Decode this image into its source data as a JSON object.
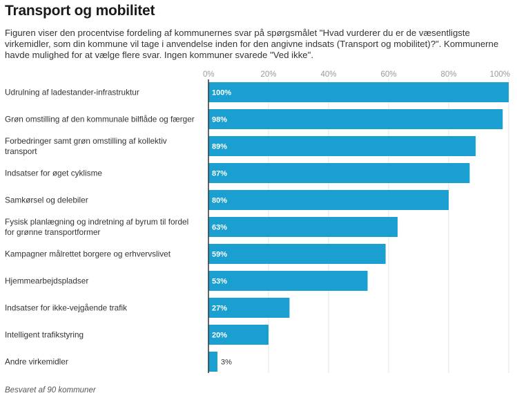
{
  "header": {
    "title": "Transport og mobilitet",
    "subtitle": "Figuren viser den procentvise fordeling af kommunernes svar på spørgsmålet \"Hvad vurderer du er de væsentligste virkemidler, som din kommune vil tage i anvendelse inden for den angivne indsats (Transport og mobilitet)?\". Kommunerne havde mulighed for at vælge flere svar. Ingen kommuner svarede \"Ved ikke\"."
  },
  "footer": {
    "note": "Besvaret af 90 kommuner"
  },
  "chart_data": {
    "type": "bar",
    "orientation": "horizontal",
    "categories": [
      [
        "Udrulning af ladestander-infrastruktur"
      ],
      [
        "Grøn omstilling af den kommunale bilflåde og færger"
      ],
      [
        "Forbedringer samt grøn omstilling af kollektiv",
        "transport"
      ],
      [
        "Indsatser for øget cyklisme"
      ],
      [
        "Samkørsel og delebiler"
      ],
      [
        "Fysisk planlægning og indretning af byrum til fordel",
        "for grønne transportformer"
      ],
      [
        "Kampagner målrettet borgere og erhvervslivet"
      ],
      [
        "Hjemmearbejdspladser"
      ],
      [
        "Indsatser for ikke-vejgående trafik"
      ],
      [
        "Intelligent trafikstyring"
      ],
      [
        "Andre virkemidler"
      ]
    ],
    "values": [
      100,
      98,
      89,
      87,
      80,
      63,
      59,
      53,
      27,
      20,
      3
    ],
    "value_labels": [
      "100%",
      "98%",
      "89%",
      "87%",
      "80%",
      "63%",
      "59%",
      "53%",
      "27%",
      "20%",
      "3%"
    ],
    "xlim": [
      0,
      100
    ],
    "xticks": [
      0,
      20,
      40,
      60,
      80,
      100
    ],
    "xtick_labels": [
      "0%",
      "20%",
      "40%",
      "60%",
      "80%",
      "100%"
    ],
    "axis_position": "top",
    "grid": true,
    "colors": {
      "bar": "#1a9fd0",
      "grid": "#e6e6e6",
      "axis": "#333333"
    }
  }
}
